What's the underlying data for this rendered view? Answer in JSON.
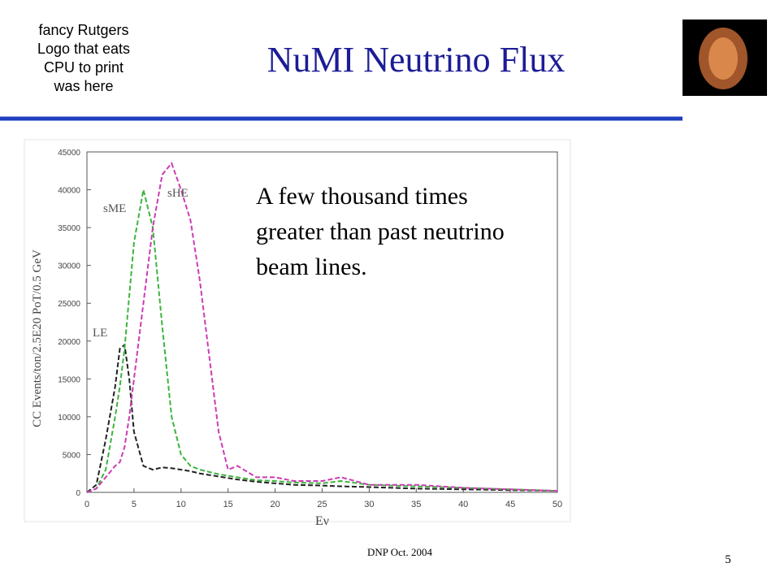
{
  "logo_text": [
    "fancy Rutgers",
    "Logo that eats",
    "CPU to print",
    "was here"
  ],
  "title": "NuMI Neutrino Flux",
  "note": [
    "A few thousand times",
    "greater than past neutrino",
    "beam lines."
  ],
  "footer": "DNP Oct. 2004",
  "page_number": "5",
  "chart_data": {
    "type": "line",
    "ylabel": "CC Events/ton/2.5E20 PoT/0.5 GeV",
    "xlabel": "Eν",
    "x": [
      0,
      1,
      2,
      3,
      3.5,
      4,
      4.5,
      5,
      6,
      7,
      8,
      9,
      10,
      11,
      12,
      13,
      14,
      15,
      16,
      18,
      20,
      22,
      25,
      27,
      30,
      35,
      40,
      45,
      50
    ],
    "series": [
      {
        "name": "LE",
        "color": "#222222",
        "values": [
          0,
          1000,
          7000,
          14000,
          19000,
          19500,
          15000,
          8000,
          3500,
          3000,
          3300,
          3200,
          3000,
          2800,
          2500,
          2300,
          2100,
          1900,
          1700,
          1400,
          1200,
          1000,
          900,
          800,
          700,
          500,
          400,
          300,
          200
        ]
      },
      {
        "name": "sME",
        "color": "#3cb43c",
        "values": [
          0,
          500,
          3000,
          10000,
          14000,
          19000,
          26000,
          33000,
          40000,
          35000,
          22000,
          10000,
          5000,
          3500,
          3000,
          2700,
          2400,
          2200,
          2000,
          1600,
          1500,
          1300,
          1200,
          1500,
          1000,
          800,
          600,
          400,
          200
        ]
      },
      {
        "name": "sHE",
        "color": "#cc3cb4",
        "values": [
          0,
          500,
          2000,
          3500,
          4000,
          6000,
          10000,
          15000,
          25000,
          35000,
          42000,
          43500,
          40000,
          36000,
          28000,
          18000,
          8000,
          3000,
          3500,
          2000,
          2000,
          1500,
          1500,
          2000,
          1000,
          1000,
          600,
          400,
          200
        ]
      }
    ],
    "xlim": [
      0,
      50
    ],
    "xticks": [
      0,
      5,
      10,
      15,
      20,
      25,
      30,
      35,
      40,
      45,
      50
    ],
    "ylim": [
      0,
      45000
    ],
    "yticks": [
      0,
      5000,
      10000,
      15000,
      20000,
      25000,
      30000,
      35000,
      40000,
      45000
    ],
    "dashed": true
  }
}
